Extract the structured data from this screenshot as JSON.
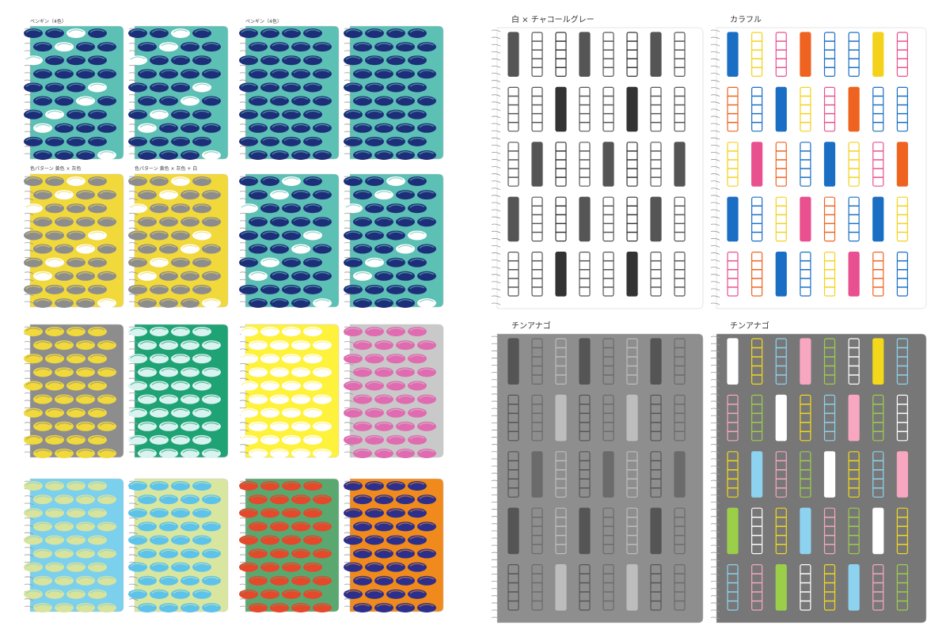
{
  "left": {
    "group_1": "ペンギン（4色）",
    "group_2": "ペンギン（4色）",
    "pattern_1": "色パターン 黄色 × 灰色",
    "pattern_2": "色パターン 黄色 × 灰色 + 白"
  },
  "right": {
    "notebook_1": "白 × チャコールグレー",
    "notebook_2": "カラフル",
    "notebook_3": "チンアナゴ",
    "notebook_4": "チンアナゴ"
  }
}
